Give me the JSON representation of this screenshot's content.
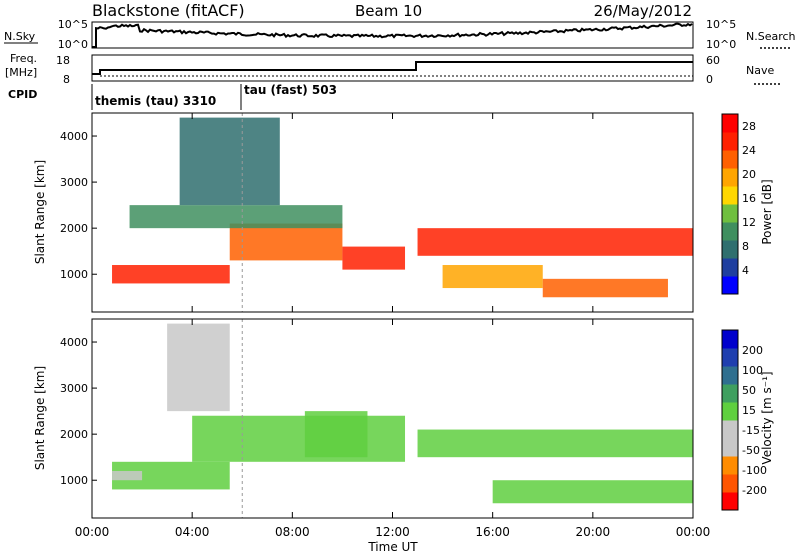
{
  "header": {
    "station": "Blackstone (fitACF)",
    "beam": "Beam 10",
    "date": "26/May/2012"
  },
  "top_panels": {
    "nsky_label": "N.Sky",
    "nsearch_label": "N.Search",
    "nsky_ticks": [
      "10^5",
      "10^0"
    ],
    "nsearch_ticks": [
      "10^5",
      "10^0"
    ],
    "freq_label_1": "Freq.",
    "freq_label_2": "[MHz]",
    "freq_ticks": [
      "18",
      "8"
    ],
    "nave_label": "Nave",
    "nave_ticks": [
      "60",
      "0"
    ],
    "cpid_label": "CPID",
    "cpid_mode_1": "themis (tau) 3310",
    "cpid_mode_2": "tau (fast) 503"
  },
  "colors": {
    "power_scale": [
      "#0000ff",
      "#1f3f9f",
      "#2f6f6f",
      "#3f8f5f",
      "#6fbf3f",
      "#ffd700",
      "#ffa500",
      "#ff6000",
      "#ff2000",
      "#ff0000"
    ],
    "velocity_scale": [
      "#ff0000",
      "#ff5500",
      "#ff8c00",
      "#c8c8c8",
      "#c8c8c8",
      "#5fcf3f",
      "#3f9f5f",
      "#2f6f8f",
      "#1f3faf",
      "#0000cc"
    ]
  },
  "chart_data": [
    {
      "type": "heatmap",
      "title": "",
      "ylabel": "Slant Range [km]",
      "xlabel": "Time UT",
      "x_ticks": [
        "00:00",
        "04:00",
        "08:00",
        "12:00",
        "16:00",
        "20:00",
        "00:00"
      ],
      "y_ticks": [
        "1000",
        "2000",
        "3000",
        "4000"
      ],
      "ylim": [
        180,
        4500
      ],
      "colorbar": {
        "label": "Power [dB]",
        "ticks": [
          "4",
          "8",
          "12",
          "16",
          "20",
          "24",
          "28"
        ],
        "range": [
          0,
          30
        ]
      },
      "bands": [
        {
          "hours": [
            0.8,
            5.5
          ],
          "range_km": [
            800,
            1200
          ],
          "value": 24
        },
        {
          "hours": [
            5.5,
            10.0
          ],
          "range_km": [
            1300,
            2100
          ],
          "value": 22
        },
        {
          "hours": [
            10.0,
            12.5
          ],
          "range_km": [
            1100,
            1600
          ],
          "value": 26
        },
        {
          "hours": [
            13.0,
            24.0
          ],
          "range_km": [
            1400,
            2000
          ],
          "value": 24
        },
        {
          "hours": [
            1.5,
            10.0
          ],
          "range_km": [
            2000,
            2500
          ],
          "value": 10
        },
        {
          "hours": [
            14.0,
            18.0
          ],
          "range_km": [
            700,
            1200
          ],
          "value": 20
        },
        {
          "hours": [
            18.0,
            23.0
          ],
          "range_km": [
            500,
            900
          ],
          "value": 22
        },
        {
          "hours": [
            3.5,
            7.5
          ],
          "range_km": [
            2500,
            4400
          ],
          "value": 8
        }
      ]
    },
    {
      "type": "heatmap",
      "title": "",
      "ylabel": "Slant Range [km]",
      "xlabel": "Time UT",
      "x_ticks": [
        "00:00",
        "04:00",
        "08:00",
        "12:00",
        "16:00",
        "20:00",
        "00:00"
      ],
      "y_ticks": [
        "1000",
        "2000",
        "3000",
        "4000"
      ],
      "ylim": [
        180,
        4500
      ],
      "colorbar": {
        "label": "Velocity [m s⁻¹]",
        "ticks": [
          "200",
          "100",
          "50",
          "15",
          "-15",
          "-50",
          "-100",
          "-200"
        ],
        "range": [
          -250,
          250
        ]
      },
      "bands": [
        {
          "hours": [
            0.8,
            5.5
          ],
          "range_km": [
            800,
            1400
          ],
          "value": 0
        },
        {
          "hours": [
            4.0,
            12.5
          ],
          "range_km": [
            1400,
            2400
          ],
          "value": 0
        },
        {
          "hours": [
            8.5,
            11.0
          ],
          "range_km": [
            1500,
            2500
          ],
          "value": 40
        },
        {
          "hours": [
            13.0,
            24.0
          ],
          "range_km": [
            1500,
            2100
          ],
          "value": 0
        },
        {
          "hours": [
            16.0,
            24.0
          ],
          "range_km": [
            500,
            1000
          ],
          "value": 0
        },
        {
          "hours": [
            3.0,
            5.5
          ],
          "range_km": [
            2500,
            4400
          ],
          "value": -80
        },
        {
          "hours": [
            0.8,
            2.0
          ],
          "range_km": [
            1000,
            1200
          ],
          "value": -60
        }
      ]
    }
  ]
}
